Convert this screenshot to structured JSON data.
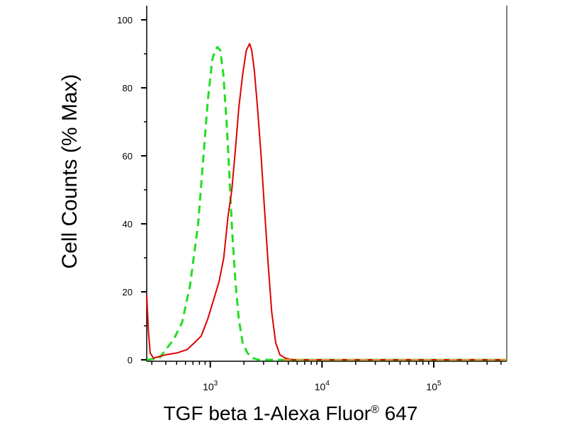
{
  "chart_data": {
    "type": "line",
    "title": "",
    "xlabel": "TGF beta 1-Alexa Fluor",
    "xlabel_sup": "®",
    "xlabel_suffix": " 647",
    "ylabel": "Cell Counts (% Max)",
    "xscale": "log",
    "xlim": [
      270,
      450000
    ],
    "ylim": [
      0,
      100
    ],
    "grid": false,
    "legend": "none",
    "y_ticks": [
      {
        "value": 0,
        "label": "0"
      },
      {
        "value": 20,
        "label": "20"
      },
      {
        "value": 40,
        "label": "40"
      },
      {
        "value": 60,
        "label": "60"
      },
      {
        "value": 80,
        "label": "80"
      },
      {
        "value": 100,
        "label": "100"
      }
    ],
    "x_ticks": [
      {
        "value": 1000,
        "base": "10",
        "exp": "3"
      },
      {
        "value": 10000,
        "base": "10",
        "exp": "4"
      },
      {
        "value": 100000,
        "base": "10",
        "exp": "5"
      }
    ],
    "series": [
      {
        "color": "#22dd22",
        "style": "dashed",
        "points": [
          [
            270,
            0
          ],
          [
            350,
            0.5
          ],
          [
            400,
            3
          ],
          [
            470,
            6
          ],
          [
            560,
            11
          ],
          [
            660,
            22
          ],
          [
            780,
            40
          ],
          [
            870,
            60
          ],
          [
            950,
            76
          ],
          [
            1040,
            88
          ],
          [
            1100,
            91
          ],
          [
            1160,
            92
          ],
          [
            1230,
            91
          ],
          [
            1310,
            84
          ],
          [
            1400,
            70
          ],
          [
            1480,
            55
          ],
          [
            1570,
            38
          ],
          [
            1680,
            23
          ],
          [
            1800,
            12
          ],
          [
            1950,
            5
          ],
          [
            2150,
            2
          ],
          [
            2400,
            0.5
          ],
          [
            2700,
            0
          ],
          [
            450000,
            0
          ]
        ]
      },
      {
        "color": "#dd0000",
        "style": "solid",
        "points": [
          [
            270,
            19
          ],
          [
            280,
            8
          ],
          [
            290,
            2
          ],
          [
            310,
            0.5
          ],
          [
            400,
            1.5
          ],
          [
            500,
            2
          ],
          [
            620,
            3
          ],
          [
            720,
            5
          ],
          [
            830,
            7
          ],
          [
            950,
            12
          ],
          [
            1080,
            18
          ],
          [
            1200,
            23
          ],
          [
            1320,
            30
          ],
          [
            1440,
            42
          ],
          [
            1560,
            50
          ],
          [
            1680,
            62
          ],
          [
            1800,
            74
          ],
          [
            1950,
            84
          ],
          [
            2100,
            91
          ],
          [
            2250,
            93
          ],
          [
            2350,
            91
          ],
          [
            2480,
            85
          ],
          [
            2650,
            74
          ],
          [
            2850,
            60
          ],
          [
            3050,
            45
          ],
          [
            3300,
            28
          ],
          [
            3550,
            14
          ],
          [
            3850,
            5
          ],
          [
            4200,
            1.5
          ],
          [
            4700,
            0.5
          ],
          [
            5500,
            0
          ],
          [
            450000,
            0
          ]
        ]
      },
      {
        "color": "#c8a040",
        "style": "dashed",
        "points": [
          [
            4500,
            0
          ],
          [
            450000,
            0
          ]
        ]
      }
    ]
  }
}
